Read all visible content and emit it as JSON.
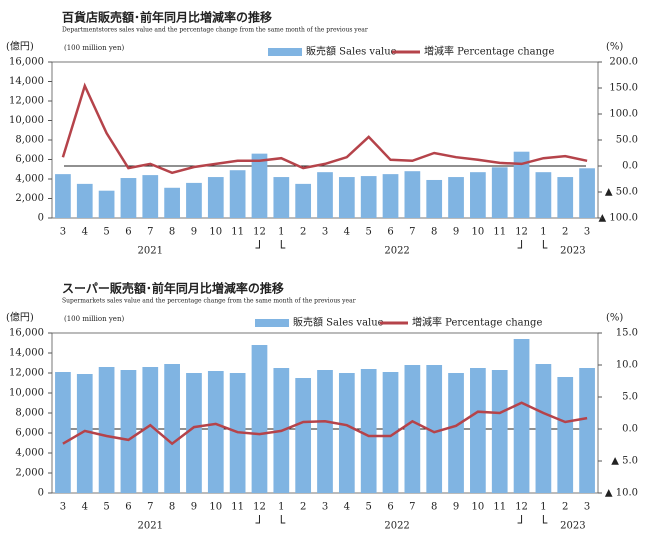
{
  "chart_data": [
    {
      "type": "bar",
      "title": "百貨店販売額･前年同月比増減率の推移",
      "subtitle": "Departmentstores sales value and the percentage change from the same month of the previous year",
      "y_axis_label": "(億円)",
      "y_unit": "(100 million yen)",
      "y2_axis_label": "(%)",
      "categories": [
        "3",
        "4",
        "5",
        "6",
        "7",
        "8",
        "9",
        "10",
        "11",
        "12",
        "1",
        "2",
        "3",
        "4",
        "5",
        "6",
        "7",
        "8",
        "9",
        "10",
        "11",
        "12",
        "1",
        "2",
        "3"
      ],
      "annotations": [
        "2021",
        "2022",
        "2023"
      ],
      "series": [
        {
          "name": "販売額 Sales value",
          "type": "bar",
          "color": "#80b4e2",
          "values": [
            4500,
            3500,
            2800,
            4100,
            4400,
            3100,
            3600,
            4200,
            4900,
            6600,
            4200,
            3500,
            4700,
            4200,
            4300,
            4500,
            4800,
            3900,
            4200,
            4700,
            5200,
            6800,
            4700,
            4200,
            5100
          ]
        },
        {
          "name": "増減率 Percentage change",
          "type": "line",
          "axis": "y2",
          "color": "#b5434a",
          "values": [
            17,
            154,
            63,
            -4,
            4,
            -13,
            -2,
            4,
            10,
            10,
            15,
            -4,
            4,
            17,
            56,
            12,
            10,
            25,
            17,
            12,
            6,
            4,
            15,
            19,
            10
          ]
        }
      ],
      "ylim": [
        0,
        16000
      ],
      "yticks": [
        0,
        {
          "value": 2000,
          "label": "2,000"
        },
        {
          "value": 4000,
          "label": "4,000"
        },
        {
          "value": 6000,
          "label": "6,000"
        },
        {
          "value": 8000,
          "label": "8,000"
        },
        {
          "value": 10000,
          "label": "10,000"
        },
        {
          "value": 12000,
          "label": "12,000"
        },
        {
          "value": 14000,
          "label": "14,000"
        },
        {
          "value": 16000,
          "label": "16,000"
        }
      ],
      "y2lim": [
        -100,
        200
      ],
      "y2ticks": [
        {
          "value": -100,
          "label": "▲ 100.0"
        },
        {
          "value": -50,
          "label": "▲ 50.0"
        },
        {
          "value": 0,
          "label": "0.0"
        },
        {
          "value": 50,
          "label": "50.0"
        },
        {
          "value": 100,
          "label": "100.0"
        },
        {
          "value": 150,
          "label": "150.0"
        },
        {
          "value": 200,
          "label": "200.0"
        }
      ]
    },
    {
      "type": "bar",
      "title": "スーパー販売額･前年同月比増減率の推移",
      "subtitle": "Supermarkets sales value and the percentage change from the same month of the previous year",
      "y_axis_label": "(億円)",
      "y_unit": "(100 million yen)",
      "y2_axis_label": "(%)",
      "categories": [
        "3",
        "4",
        "5",
        "6",
        "7",
        "8",
        "9",
        "10",
        "11",
        "12",
        "1",
        "2",
        "3",
        "4",
        "5",
        "6",
        "7",
        "8",
        "9",
        "10",
        "11",
        "12",
        "1",
        "2",
        "3"
      ],
      "annotations": [
        "2021",
        "2022",
        "2023"
      ],
      "series": [
        {
          "name": "販売額 Sales value",
          "type": "bar",
          "color": "#80b4e2",
          "values": [
            12100,
            11900,
            12600,
            12300,
            12600,
            12900,
            12000,
            12200,
            12000,
            14800,
            12500,
            11500,
            12300,
            12000,
            12400,
            12100,
            12800,
            12800,
            12000,
            12500,
            12300,
            15400,
            12900,
            11600,
            12500
          ]
        },
        {
          "name": "増減率 Percentage change",
          "type": "line",
          "axis": "y2",
          "color": "#b5434a",
          "values": [
            -2.3,
            -0.3,
            -1.1,
            -1.7,
            0.6,
            -2.3,
            0.3,
            0.8,
            -0.5,
            -0.8,
            -0.3,
            1.1,
            1.2,
            0.6,
            -1.1,
            -1.1,
            1.2,
            -0.5,
            0.5,
            2.7,
            2.5,
            4.1,
            2.5,
            1.1,
            1.7
          ]
        }
      ],
      "ylim": [
        0,
        16000
      ],
      "yticks": [
        0,
        {
          "value": 2000,
          "label": "2,000"
        },
        {
          "value": 4000,
          "label": "4,000"
        },
        {
          "value": 6000,
          "label": "6,000"
        },
        {
          "value": 8000,
          "label": "8,000"
        },
        {
          "value": 10000,
          "label": "10,000"
        },
        {
          "value": 12000,
          "label": "12,000"
        },
        {
          "value": 14000,
          "label": "14,000"
        },
        {
          "value": 16000,
          "label": "16,000"
        }
      ],
      "y2lim": [
        -10,
        15
      ],
      "y2ticks": [
        {
          "value": -10,
          "label": "▲ 10.0"
        },
        {
          "value": -5,
          "label": "▲ 5.0"
        },
        {
          "value": 0,
          "label": "0.0"
        },
        {
          "value": 5,
          "label": "5.0"
        },
        {
          "value": 10,
          "label": "10.0"
        },
        {
          "value": 15,
          "label": "15.0"
        }
      ]
    }
  ]
}
